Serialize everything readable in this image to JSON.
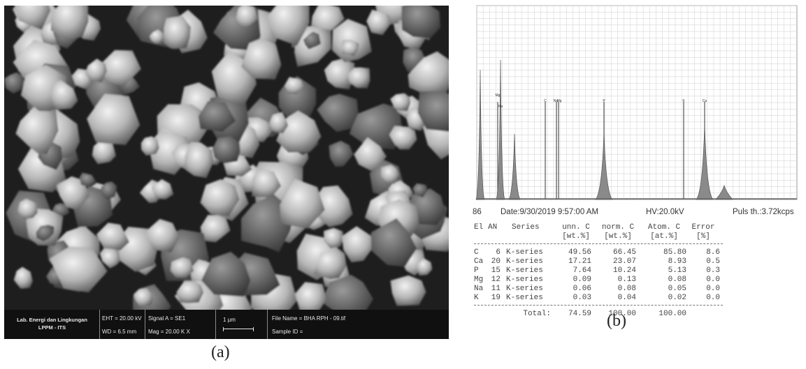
{
  "captions": {
    "a": "(a)",
    "b": "(b)"
  },
  "sem": {
    "databar": {
      "lab_line1": "Lab. Energi dan Lingkungan",
      "lab_line2": "LPPM - ITS",
      "eht": "EHT = 20.00 kV",
      "wd": "WD =  6.5 mm",
      "signal": "Signal A = SE1",
      "mag": "Mag =  20.00 K X",
      "scale_label": "1 µm",
      "file_name": "File Name = BHA RPH - 09.tif",
      "sample_id": "Sample ID ="
    }
  },
  "edx": {
    "info": {
      "number": "86",
      "date": "Date:9/30/2019 9:57:00 AM",
      "hv": "HV:20.0kV",
      "puls": "Puls th.:3.72kcps"
    },
    "peak_labels": [
      "Mg",
      "Na",
      "C",
      "Na",
      "Mg",
      "P",
      "K",
      "Ca"
    ],
    "table": {
      "header1": [
        "El",
        "AN",
        "Series",
        "unn. C",
        "norm. C",
        "Atom. C",
        "Error"
      ],
      "header2": [
        "",
        "",
        "",
        "[wt.%]",
        "[wt.%]",
        "[at.%]",
        "[%]"
      ],
      "rows": [
        [
          "C",
          "6",
          "K-series",
          "49.56",
          "66.45",
          "85.80",
          "8.6"
        ],
        [
          "Ca",
          "20",
          "K-series",
          "17.21",
          "23.07",
          "8.93",
          "0.5"
        ],
        [
          "P",
          "15",
          "K-series",
          "7.64",
          "10.24",
          "5.13",
          "0.3"
        ],
        [
          "Mg",
          "12",
          "K-series",
          "0.09",
          "0.13",
          "0.08",
          "0.0"
        ],
        [
          "Na",
          "11",
          "K-series",
          "0.06",
          "0.08",
          "0.05",
          "0.0"
        ],
        [
          "K",
          "19",
          "K-series",
          "0.03",
          "0.04",
          "0.02",
          "0.0"
        ]
      ],
      "total": [
        "Total:",
        "74.59",
        "100.00",
        "100.00"
      ]
    }
  }
}
